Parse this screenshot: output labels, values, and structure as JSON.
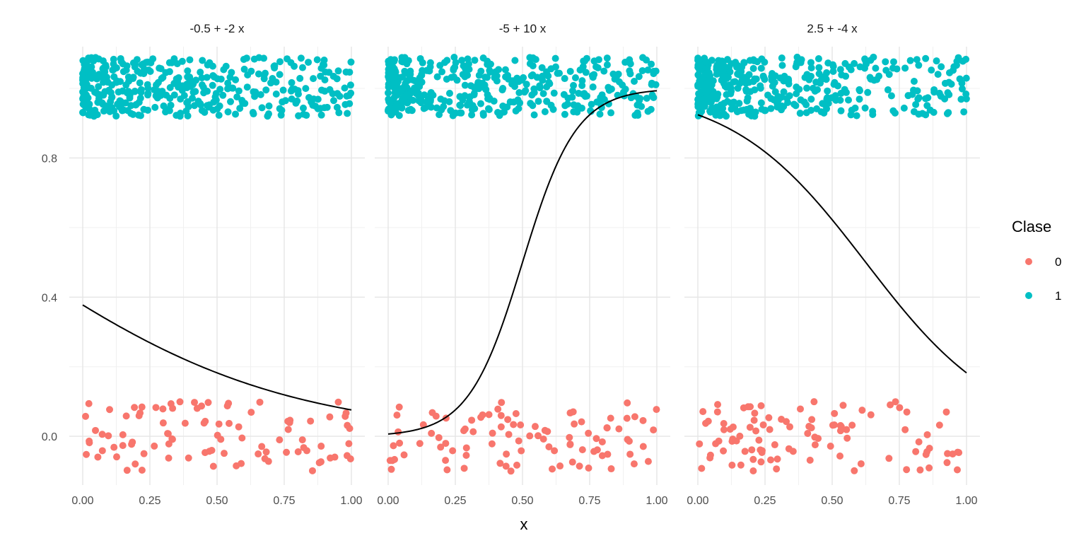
{
  "chart_data": {
    "type": "scatter",
    "xlabel": "x",
    "ylabel": "",
    "xlim": [
      -0.05,
      1.05
    ],
    "ylim": [
      -0.14,
      1.12
    ],
    "x_ticks": [
      "0.00",
      "0.25",
      "0.50",
      "0.75",
      "1.00"
    ],
    "x_tick_values": [
      0,
      0.25,
      0.5,
      0.75,
      1.0
    ],
    "y_ticks": [
      "0.0",
      "0.4",
      "0.8"
    ],
    "y_tick_values": [
      0,
      0.4,
      0.8
    ],
    "grid": true,
    "legend": {
      "title": "Clase",
      "position": "right",
      "entries": [
        {
          "label": "0",
          "color": "#F8766D"
        },
        {
          "label": "1",
          "color": "#00BFC4"
        }
      ]
    },
    "curve_color": "#000000",
    "panels": [
      {
        "title": "-0.5 + -2 x",
        "intercept": -0.5,
        "slope": -2,
        "n_class0": 95,
        "n_class1": 410,
        "x_bias": 0.5
      },
      {
        "title": "-5 + 10 x",
        "intercept": -5,
        "slope": 10,
        "n_class0": 95,
        "n_class1": 410,
        "x_bias": 0.5
      },
      {
        "title": "2.5 + -4 x",
        "intercept": 2.5,
        "slope": -4,
        "n_class0": 100,
        "n_class1": 400,
        "x_bias": 0.45
      }
    ]
  }
}
